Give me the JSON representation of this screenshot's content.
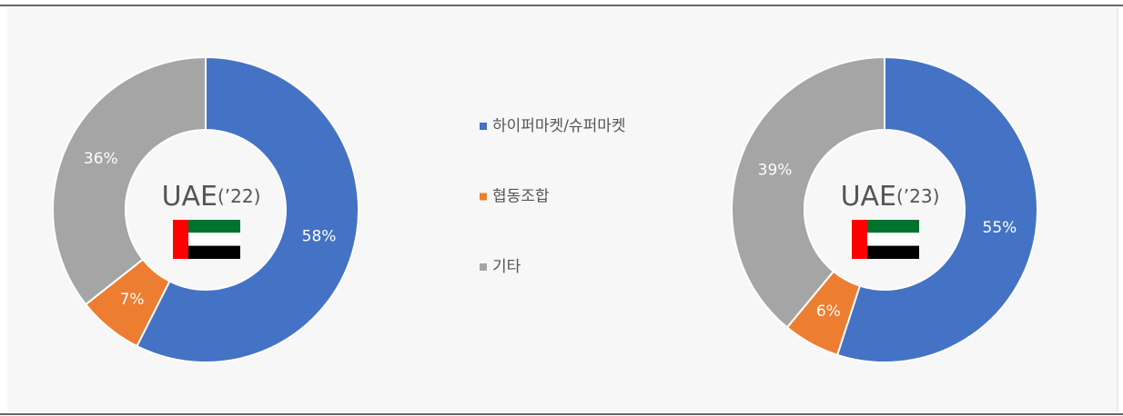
{
  "chart_data": [
    {
      "type": "donut",
      "title": "UAE",
      "subtitle": "(’22)",
      "values": [
        58,
        7,
        36
      ],
      "value_labels": [
        "58%",
        "7%",
        "36%"
      ],
      "colors": [
        "#4472c4",
        "#ed7d31",
        "#a5a5a5"
      ]
    },
    {
      "type": "donut",
      "title": "UAE",
      "subtitle": "(’23)",
      "values": [
        55,
        6,
        39
      ],
      "value_labels": [
        "55%",
        "6%",
        "39%"
      ],
      "colors": [
        "#4472c4",
        "#ed7d31",
        "#a5a5a5"
      ]
    }
  ],
  "legend": {
    "labels": [
      "하이퍼마켓/슈퍼마켓",
      "협동조합",
      "기타"
    ],
    "colors": [
      "#4472c4",
      "#ed7d31",
      "#a5a5a5"
    ]
  }
}
